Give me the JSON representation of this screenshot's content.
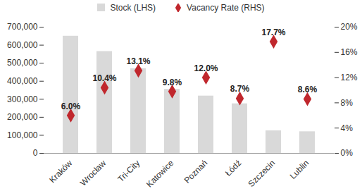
{
  "chart_data": {
    "type": "bar",
    "categories": [
      "Kraków",
      "Wrocław",
      "Tri-City",
      "Katowice",
      "Poznań",
      "Łódź",
      "Szczecin",
      "Lublin"
    ],
    "series": [
      {
        "name": "Stock (LHS)",
        "type": "bar",
        "color": "#d9d9d9",
        "values": [
          650000,
          565000,
          470000,
          355000,
          318000,
          275000,
          125000,
          120000
        ]
      },
      {
        "name": "Vacancy Rate (RHS)",
        "type": "scatter",
        "marker": "diamond",
        "color": "#c0272d",
        "axis": "y2",
        "values": [
          6.0,
          10.4,
          13.1,
          9.8,
          12.0,
          8.7,
          17.7,
          8.6
        ],
        "value_labels": [
          "6.0%",
          "10.4%",
          "13.1%",
          "9.8%",
          "12.0%",
          "8.7%",
          "17.7%",
          "8.6%"
        ],
        "data_labels": true
      }
    ],
    "ylim": [
      0,
      700000
    ],
    "yticks": [
      0,
      {
        "value": 100000,
        "label": "100,000"
      },
      {
        "value": 200000,
        "label": "200,000"
      },
      {
        "value": 300000,
        "label": "300,000"
      },
      {
        "value": 400000,
        "label": "400,000"
      },
      {
        "value": 500000,
        "label": "500,000"
      },
      {
        "value": 600000,
        "label": "600,000"
      },
      {
        "value": 700000,
        "label": "700,000"
      }
    ],
    "y2lim": [
      0,
      20
    ],
    "y2ticks": [
      {
        "value": 0,
        "label": "0%"
      },
      {
        "value": 4,
        "label": "4%"
      },
      {
        "value": 8,
        "label": "8%"
      },
      {
        "value": 12,
        "label": "12%"
      },
      {
        "value": 16,
        "label": "16%"
      },
      {
        "value": 20,
        "label": "20%"
      }
    ],
    "legend": "top",
    "grid": false
  }
}
